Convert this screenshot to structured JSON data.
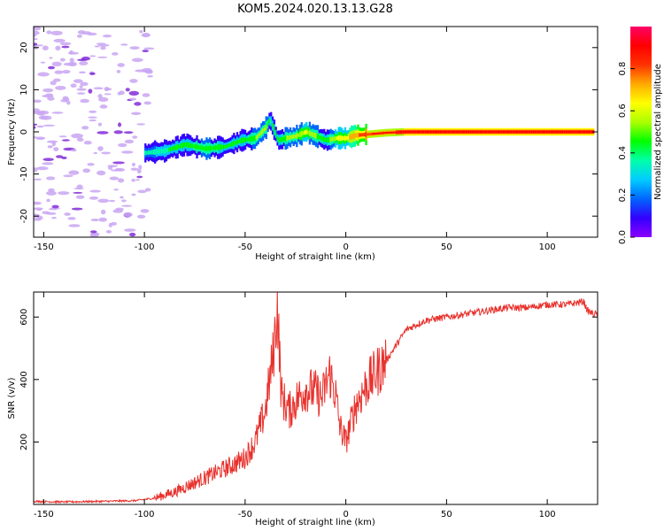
{
  "figure_title": "KOM5.2024.020.13.13.G28",
  "colors": {
    "snr_line": "#e8322d",
    "signal_core": "#e8322d",
    "noise_blob": "#c9a6f2",
    "noise_blob_dark": "#7a1fd6"
  },
  "chart_data": [
    {
      "type": "heatmap",
      "title": "KOM5.2024.020.13.13.G28",
      "xlabel": "Height of straight line (km)",
      "ylabel": "Frequency (Hz)",
      "xlim": [
        -155,
        125
      ],
      "ylim": [
        -25,
        25
      ],
      "x_ticks": [
        -150,
        -100,
        -50,
        0,
        50,
        100
      ],
      "y_ticks": [
        -20,
        -10,
        0,
        10,
        20
      ],
      "grid": false,
      "colorbar": {
        "label": "Normalized spectral amplitude",
        "range": [
          0,
          1
        ],
        "ticks": [
          0.0,
          0.2,
          0.4,
          0.6,
          0.8
        ],
        "colormap": [
          "#8b00ff",
          "#3300ff",
          "#0066ff",
          "#00ccff",
          "#00ffaa",
          "#00ff00",
          "#aaff00",
          "#ffff00",
          "#ffaa00",
          "#ff3300",
          "#ff0000",
          "#ff0066"
        ]
      },
      "ridge": {
        "description_x": [
          -100,
          -90,
          -80,
          -70,
          -60,
          -52,
          -45,
          -40,
          -38,
          -34,
          -30,
          -25,
          -20,
          -15,
          -10,
          -5,
          0,
          5,
          10,
          20,
          30,
          50,
          80,
          100,
          123
        ],
        "freq_hz": [
          -5,
          -4.5,
          -3,
          -4,
          -3.5,
          -2,
          -1.5,
          1,
          3,
          -2,
          -1.5,
          -1,
          0,
          -1,
          -2,
          -1.5,
          -1.5,
          -0.8,
          -0.6,
          -0.2,
          0,
          0,
          0,
          0,
          0
        ],
        "amplitude": [
          0.35,
          0.4,
          0.45,
          0.5,
          0.45,
          0.45,
          0.5,
          0.55,
          0.4,
          0.45,
          0.5,
          0.55,
          0.6,
          0.5,
          0.45,
          0.6,
          0.65,
          0.75,
          0.85,
          0.9,
          0.95,
          0.95,
          0.95,
          0.95,
          0.95
        ]
      }
    },
    {
      "type": "line",
      "title": "",
      "xlabel": "Height of straight line (km)",
      "ylabel": "SNR (v/v)",
      "xlim": [
        -155,
        125
      ],
      "ylim": [
        0,
        680
      ],
      "x_ticks": [
        -150,
        -100,
        -50,
        0,
        50,
        100
      ],
      "y_ticks": [
        200,
        400,
        600
      ],
      "grid": false,
      "series": [
        {
          "x": [
            -155,
            -140,
            -120,
            -105,
            -95,
            -85,
            -75,
            -65,
            -55,
            -50,
            -45,
            -40,
            -36,
            -34,
            -32,
            -30,
            -28,
            -25,
            -20,
            -15,
            -12,
            -8,
            -5,
            -3,
            0,
            5,
            10,
            15,
            20,
            25,
            30,
            40,
            50,
            60,
            70,
            80,
            90,
            100,
            110,
            118,
            120,
            123,
            125
          ],
          "y": [
            10,
            8,
            10,
            12,
            20,
            40,
            70,
            100,
            130,
            150,
            200,
            300,
            480,
            640,
            350,
            320,
            300,
            330,
            370,
            360,
            340,
            420,
            350,
            250,
            200,
            320,
            380,
            420,
            460,
            510,
            560,
            590,
            600,
            610,
            620,
            630,
            630,
            640,
            640,
            650,
            620,
            610,
            610
          ]
        }
      ]
    }
  ]
}
